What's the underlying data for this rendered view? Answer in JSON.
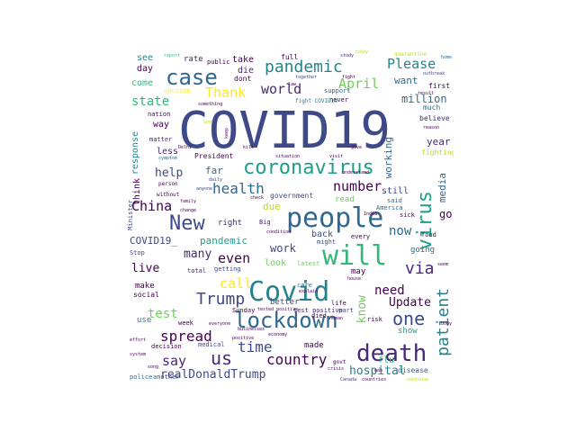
{
  "palette": {
    "c1": "#440154",
    "c2": "#482878",
    "c3": "#3e4989",
    "c4": "#31688e",
    "c5": "#26828e",
    "c6": "#1f9e89",
    "c7": "#35b779",
    "c8": "#6ece58",
    "c9": "#b5de2b",
    "c10": "#fde725"
  },
  "words": [
    {
      "text": "COVID19",
      "color": "#3e4989",
      "size": 56
    },
    {
      "text": "people",
      "color": "#31688e",
      "size": 30
    },
    {
      "text": "coronavirus",
      "color": "#1f9e89",
      "size": 22
    },
    {
      "text": "Covid",
      "color": "#26828e",
      "size": 30
    },
    {
      "text": "will",
      "color": "#35b779",
      "size": 30
    },
    {
      "text": "death",
      "color": "#482878",
      "size": 26
    },
    {
      "text": "case",
      "color": "#31688e",
      "size": 24
    },
    {
      "text": "lockdown",
      "color": "#31688e",
      "size": 24
    },
    {
      "text": "pandemic",
      "color": "#26828e",
      "size": 18
    },
    {
      "text": "virus",
      "color": "#1f9e89",
      "size": 22
    },
    {
      "text": "New",
      "color": "#3e4989",
      "size": 22
    },
    {
      "text": "patient",
      "color": "#26828e",
      "size": 18
    },
    {
      "text": "one",
      "color": "#3e4989",
      "size": 20
    },
    {
      "text": "Trump",
      "color": "#3e4989",
      "size": 18
    },
    {
      "text": "health",
      "color": "#31688e",
      "size": 16
    },
    {
      "text": "country",
      "color": "#440154",
      "size": 16
    },
    {
      "text": "us",
      "color": "#482878",
      "size": 20
    },
    {
      "text": "time",
      "color": "#3e4989",
      "size": 16
    },
    {
      "text": "spread",
      "color": "#440154",
      "size": 16
    },
    {
      "text": "world",
      "color": "#482878",
      "size": 15
    },
    {
      "text": "Thank",
      "color": "#fde725",
      "size": 15
    },
    {
      "text": "April",
      "color": "#6ece58",
      "size": 15
    },
    {
      "text": "Please",
      "color": "#26828e",
      "size": 15
    },
    {
      "text": "China",
      "color": "#440154",
      "size": 15
    },
    {
      "text": "number",
      "color": "#440154",
      "size": 15
    },
    {
      "text": "say",
      "color": "#482878",
      "size": 15
    },
    {
      "text": "even",
      "color": "#440154",
      "size": 15
    },
    {
      "text": "call",
      "color": "#fde725",
      "size": 15
    },
    {
      "text": "state",
      "color": "#35b779",
      "size": 14
    },
    {
      "text": "now",
      "color": "#31688e",
      "size": 14
    },
    {
      "text": "via",
      "color": "#482878",
      "size": 18
    },
    {
      "text": "test",
      "color": "#6ece58",
      "size": 14
    },
    {
      "text": "need",
      "color": "#440154",
      "size": 14
    },
    {
      "text": "hospital",
      "color": "#26828e",
      "size": 13
    },
    {
      "text": "realDonaldTrump",
      "color": "#3e4989",
      "size": 13
    },
    {
      "text": "know",
      "color": "#6ece58",
      "size": 13
    },
    {
      "text": "Update",
      "color": "#440154",
      "size": 13
    },
    {
      "text": "help",
      "color": "#3e4989",
      "size": 13
    },
    {
      "text": "many",
      "color": "#482878",
      "size": 13
    },
    {
      "text": "live",
      "color": "#440154",
      "size": 13
    },
    {
      "text": "work",
      "color": "#3e4989",
      "size": 12
    },
    {
      "text": "go",
      "color": "#440154",
      "size": 12
    },
    {
      "text": "working",
      "color": "#31688e",
      "size": 11
    },
    {
      "text": "media",
      "color": "#31688e",
      "size": 11
    },
    {
      "text": "million",
      "color": "#31688e",
      "size": 12
    },
    {
      "text": "want",
      "color": "#31688e",
      "size": 11
    },
    {
      "text": "year",
      "color": "#482878",
      "size": 11
    },
    {
      "text": "due",
      "color": "#b5de2b",
      "size": 11
    },
    {
      "text": "COVID19_",
      "color": "#3e4989",
      "size": 11
    },
    {
      "text": "pandemic",
      "color": "#1f9e89",
      "size": 11
    },
    {
      "text": "far",
      "color": "#31688e",
      "size": 11
    },
    {
      "text": "think",
      "color": "#440154",
      "size": 10
    },
    {
      "text": "response",
      "color": "#26828e",
      "size": 10
    },
    {
      "text": "way",
      "color": "#440154",
      "size": 10
    },
    {
      "text": "less",
      "color": "#482878",
      "size": 10
    },
    {
      "text": "take",
      "color": "#440154",
      "size": 10
    },
    {
      "text": "die",
      "color": "#482878",
      "size": 10
    },
    {
      "text": "see",
      "color": "#26828e",
      "size": 10
    },
    {
      "text": "day",
      "color": "#440154",
      "size": 10
    },
    {
      "text": "rate",
      "color": "#482878",
      "size": 9
    },
    {
      "text": "come",
      "color": "#35b779",
      "size": 10
    },
    {
      "text": "look",
      "color": "#6ece58",
      "size": 10
    },
    {
      "text": "read",
      "color": "#6ece58",
      "size": 9
    },
    {
      "text": "still",
      "color": "#3e4989",
      "size": 10
    },
    {
      "text": "back",
      "color": "#3e4989",
      "size": 10
    },
    {
      "text": "make",
      "color": "#440154",
      "size": 9
    },
    {
      "text": "show",
      "color": "#1f9e89",
      "size": 9
    },
    {
      "text": "made",
      "color": "#440154",
      "size": 9
    },
    {
      "text": "flu",
      "color": "#35b779",
      "size": 10
    },
    {
      "text": "may",
      "color": "#440154",
      "size": 9
    },
    {
      "text": "better",
      "color": "#3e4989",
      "size": 9
    },
    {
      "text": "going",
      "color": "#31688e",
      "size": 9
    },
    {
      "text": "right",
      "color": "#482878",
      "size": 9
    },
    {
      "text": "use",
      "color": "#26828e",
      "size": 9
    },
    {
      "text": "full",
      "color": "#440154",
      "size": 8
    },
    {
      "text": "social",
      "color": "#440154",
      "size": 8
    },
    {
      "text": "test positive",
      "color": "#482878",
      "size": 7
    },
    {
      "text": "police",
      "color": "#31688e",
      "size": 7
    },
    {
      "text": "disease",
      "color": "#31688e",
      "size": 8
    },
    {
      "text": "another",
      "color": "#3e4989",
      "size": 7
    },
    {
      "text": "Minister",
      "color": "#3e4989",
      "size": 7
    },
    {
      "text": "President",
      "color": "#440154",
      "size": 8
    },
    {
      "text": "government",
      "color": "#3e4989",
      "size": 8
    },
    {
      "text": "believe",
      "color": "#482878",
      "size": 8
    },
    {
      "text": "fighting",
      "color": "#b5de2b",
      "size": 8
    },
    {
      "text": "much",
      "color": "#31688e",
      "size": 8
    },
    {
      "text": "first",
      "color": "#440154",
      "size": 8
    },
    {
      "text": "dont",
      "color": "#440154",
      "size": 8
    },
    {
      "text": "public",
      "color": "#440154",
      "size": 7
    },
    {
      "text": "food",
      "color": "#440154",
      "size": 7
    },
    {
      "text": "medical",
      "color": "#3e4989",
      "size": 7
    },
    {
      "text": "week",
      "color": "#440154",
      "size": 7
    },
    {
      "text": "getting",
      "color": "#3e4989",
      "size": 7
    },
    {
      "text": "total",
      "color": "#482878",
      "size": 7
    },
    {
      "text": "Stop",
      "color": "#3e4989",
      "size": 7
    },
    {
      "text": "Sunday",
      "color": "#440154",
      "size": 7
    },
    {
      "text": "died",
      "color": "#440154",
      "size": 7
    },
    {
      "text": "latest",
      "color": "#6ece58",
      "size": 7
    },
    {
      "text": "care",
      "color": "#31688e",
      "size": 7
    },
    {
      "text": "life",
      "color": "#440154",
      "size": 7
    },
    {
      "text": "said",
      "color": "#31688e",
      "size": 7
    },
    {
      "text": "sick",
      "color": "#440154",
      "size": 7
    },
    {
      "text": "Big",
      "color": "#482878",
      "size": 7
    },
    {
      "text": "America",
      "color": "#31688e",
      "size": 7
    },
    {
      "text": "might",
      "color": "#3e4989",
      "size": 7
    },
    {
      "text": "every",
      "color": "#440154",
      "size": 7
    },
    {
      "text": "support",
      "color": "#31688e",
      "size": 7
    },
    {
      "text": "must",
      "color": "#31688e",
      "size": 7
    },
    {
      "text": "never",
      "color": "#440154",
      "size": 7
    },
    {
      "text": "nation",
      "color": "#440154",
      "size": 7
    },
    {
      "text": "matter",
      "color": "#482878",
      "size": 7
    },
    {
      "text": "vaccine",
      "color": "#fde725",
      "size": 7
    },
    {
      "text": "quarantine",
      "color": "#b5de2b",
      "size": 6
    },
    {
      "text": "decision",
      "color": "#440154",
      "size": 7
    },
    {
      "text": "part",
      "color": "#3e4989",
      "size": 7
    },
    {
      "text": "risk",
      "color": "#440154",
      "size": 7
    },
    {
      "text": "govt",
      "color": "#440154",
      "size": 6
    },
    {
      "text": "Canada",
      "color": "#3e4989",
      "size": 5
    },
    {
      "text": "fight COVID19",
      "color": "#26828e",
      "size": 6
    },
    {
      "text": "together",
      "color": "#3e4989",
      "size": 5
    },
    {
      "text": "study",
      "color": "#482878",
      "size": 5
    },
    {
      "text": "today",
      "color": "#b5de2b",
      "size": 5
    },
    {
      "text": "outbreak",
      "color": "#3e4989",
      "size": 5
    },
    {
      "text": "home",
      "color": "#31688e",
      "size": 5
    },
    {
      "text": "report",
      "color": "#35b779",
      "size": 5
    },
    {
      "text": "something",
      "color": "#440154",
      "size": 5
    },
    {
      "text": "God",
      "color": "#b5de2b",
      "size": 5
    },
    {
      "text": "symptom",
      "color": "#31688e",
      "size": 5
    },
    {
      "text": "Delhi",
      "color": "#440154",
      "size": 5
    },
    {
      "text": "understand",
      "color": "#440154",
      "size": 5
    },
    {
      "text": "India",
      "color": "#440154",
      "size": 5
    },
    {
      "text": "check",
      "color": "#440154",
      "size": 5
    },
    {
      "text": "visit",
      "color": "#440154",
      "size": 5
    },
    {
      "text": "situation",
      "color": "#440154",
      "size": 5
    },
    {
      "text": "condition",
      "color": "#440154",
      "size": 5
    },
    {
      "text": "without",
      "color": "#440154",
      "size": 6
    },
    {
      "text": "family",
      "color": "#440154",
      "size": 5
    },
    {
      "text": "person",
      "color": "#440154",
      "size": 6
    },
    {
      "text": "daily",
      "color": "#3e4989",
      "size": 5
    },
    {
      "text": "anyone",
      "color": "#3e4989",
      "size": 5
    },
    {
      "text": "change",
      "color": "#440154",
      "size": 5
    },
    {
      "text": "keep",
      "color": "#440154",
      "size": 5
    },
    {
      "text": "kill",
      "color": "#440154",
      "size": 5
    },
    {
      "text": "give",
      "color": "#440154",
      "size": 5
    },
    {
      "text": "law",
      "color": "#440154",
      "size": 5
    },
    {
      "text": "fight",
      "color": "#440154",
      "size": 5
    },
    {
      "text": "result",
      "color": "#440154",
      "size": 5
    },
    {
      "text": "reason",
      "color": "#440154",
      "size": 5
    },
    {
      "text": "explain",
      "color": "#440154",
      "size": 5
    },
    {
      "text": "house",
      "color": "#440154",
      "size": 5
    },
    {
      "text": "businesses",
      "color": "#440154",
      "size": 5
    },
    {
      "text": "positive",
      "color": "#440154",
      "size": 5
    },
    {
      "text": "everyone",
      "color": "#440154",
      "size": 5
    },
    {
      "text": "human",
      "color": "#440154",
      "size": 5
    },
    {
      "text": "economy",
      "color": "#440154",
      "size": 5
    },
    {
      "text": "seem",
      "color": "#440154",
      "size": 5
    },
    {
      "text": "body",
      "color": "#440154",
      "size": 5
    },
    {
      "text": "continue",
      "color": "#b5de2b",
      "size": 5
    },
    {
      "text": "countries",
      "color": "#440154",
      "size": 5
    },
    {
      "text": "crisis",
      "color": "#440154",
      "size": 5
    },
    {
      "text": "man",
      "color": "#440154",
      "size": 5
    },
    {
      "text": "song",
      "color": "#440154",
      "size": 5
    },
    {
      "text": "effort",
      "color": "#440154",
      "size": 5
    },
    {
      "text": "system",
      "color": "#440154",
      "size": 5
    },
    {
      "text": "tested positive",
      "color": "#440154",
      "size": 5
    }
  ]
}
